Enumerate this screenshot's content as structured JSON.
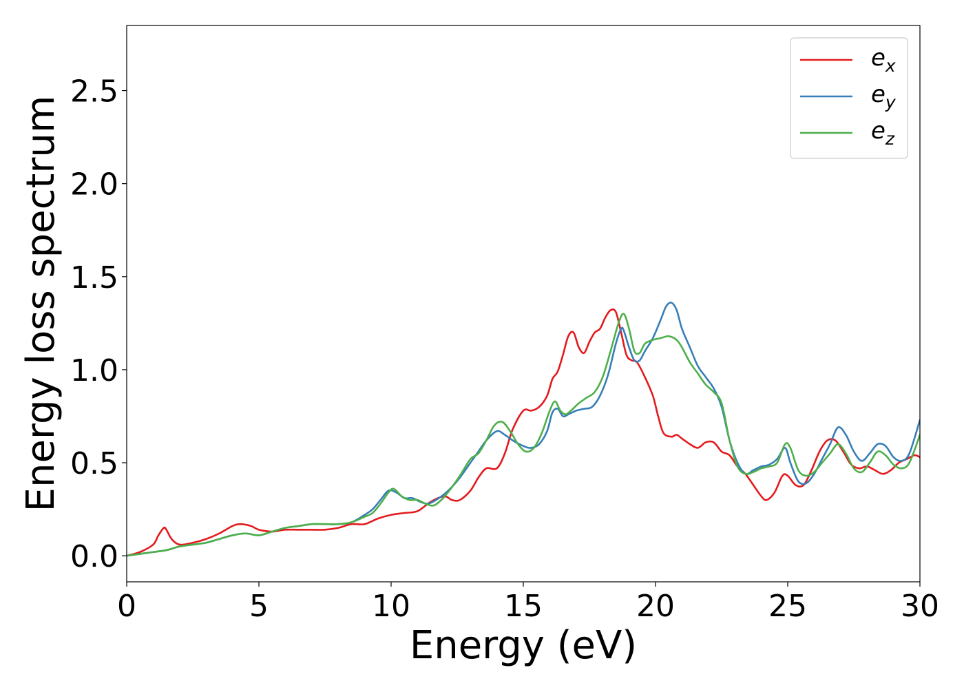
{
  "chart_data": {
    "type": "line",
    "title": "",
    "xlabel": "Energy (eV)",
    "ylabel": "Energy loss spectrum",
    "xlim": [
      0,
      30
    ],
    "ylim": [
      -0.14,
      2.85
    ],
    "xticks": [
      0,
      5,
      10,
      15,
      20,
      25,
      30
    ],
    "xtick_labels": [
      "0",
      "5",
      "10",
      "15",
      "20",
      "25",
      "30"
    ],
    "yticks": [
      0.0,
      0.5,
      1.0,
      1.5,
      2.0,
      2.5
    ],
    "ytick_labels": [
      "0.0",
      "0.5",
      "1.0",
      "1.5",
      "2.0",
      "2.5"
    ],
    "grid": false,
    "legend_position": "top-right",
    "series": [
      {
        "name": "e_x",
        "label_base": "e",
        "label_sub": "x",
        "color": "#e41a1c",
        "x": [
          0,
          0.5,
          1.0,
          1.2,
          1.4,
          1.5,
          1.7,
          2.0,
          2.5,
          3.0,
          3.5,
          4.0,
          4.3,
          4.7,
          5.0,
          5.5,
          6.0,
          6.5,
          7.0,
          7.5,
          8.0,
          8.5,
          9.0,
          9.5,
          10.0,
          10.5,
          11.0,
          11.5,
          12.0,
          12.3,
          12.6,
          13.0,
          13.3,
          13.6,
          14.0,
          14.3,
          14.6,
          15.0,
          15.3,
          15.6,
          15.9,
          16.1,
          16.3,
          16.5,
          16.7,
          16.9,
          17.1,
          17.3,
          17.5,
          17.7,
          17.9,
          18.1,
          18.3,
          18.5,
          18.7,
          18.9,
          19.1,
          19.3,
          19.6,
          19.9,
          20.1,
          20.3,
          20.6,
          20.8,
          21.0,
          21.3,
          21.6,
          21.9,
          22.2,
          22.5,
          22.8,
          23.1,
          23.4,
          23.7,
          24.0,
          24.2,
          24.5,
          24.8,
          25.0,
          25.3,
          25.6,
          25.9,
          26.2,
          26.5,
          26.8,
          27.1,
          27.4,
          27.7,
          28.0,
          28.3,
          28.6,
          28.9,
          29.2,
          29.5,
          29.8,
          30.0
        ],
        "y": [
          0.0,
          0.02,
          0.06,
          0.11,
          0.15,
          0.14,
          0.09,
          0.06,
          0.07,
          0.09,
          0.12,
          0.16,
          0.17,
          0.16,
          0.14,
          0.13,
          0.14,
          0.14,
          0.14,
          0.14,
          0.15,
          0.17,
          0.17,
          0.2,
          0.22,
          0.23,
          0.24,
          0.29,
          0.32,
          0.3,
          0.3,
          0.35,
          0.42,
          0.47,
          0.47,
          0.55,
          0.68,
          0.78,
          0.78,
          0.8,
          0.86,
          0.95,
          0.99,
          1.08,
          1.18,
          1.2,
          1.12,
          1.09,
          1.15,
          1.2,
          1.22,
          1.28,
          1.32,
          1.31,
          1.2,
          1.08,
          1.05,
          1.04,
          0.96,
          0.86,
          0.75,
          0.66,
          0.64,
          0.65,
          0.63,
          0.6,
          0.58,
          0.61,
          0.61,
          0.56,
          0.54,
          0.48,
          0.44,
          0.38,
          0.32,
          0.3,
          0.34,
          0.43,
          0.43,
          0.38,
          0.38,
          0.46,
          0.56,
          0.62,
          0.62,
          0.56,
          0.49,
          0.47,
          0.48,
          0.46,
          0.44,
          0.46,
          0.5,
          0.52,
          0.54,
          0.53
        ]
      },
      {
        "name": "e_y",
        "label_base": "e",
        "label_sub": "y",
        "color": "#377eb8",
        "x": [
          0,
          0.5,
          1.0,
          1.5,
          2.0,
          2.5,
          3.0,
          3.5,
          4.0,
          4.5,
          5.0,
          5.5,
          6.0,
          6.5,
          7.0,
          7.5,
          8.0,
          8.5,
          9.0,
          9.3,
          9.6,
          9.9,
          10.2,
          10.5,
          10.8,
          11.1,
          11.4,
          11.7,
          12.0,
          12.3,
          12.6,
          13.0,
          13.3,
          13.6,
          14.0,
          14.3,
          14.6,
          15.0,
          15.3,
          15.6,
          15.9,
          16.1,
          16.3,
          16.5,
          16.7,
          17.0,
          17.3,
          17.6,
          17.9,
          18.2,
          18.5,
          18.7,
          18.8,
          19.0,
          19.2,
          19.4,
          19.6,
          19.9,
          20.2,
          20.4,
          20.6,
          20.8,
          21.0,
          21.3,
          21.6,
          21.9,
          22.2,
          22.5,
          22.8,
          23.1,
          23.4,
          23.7,
          24.0,
          24.3,
          24.6,
          24.9,
          25.1,
          25.4,
          25.7,
          26.0,
          26.3,
          26.6,
          26.9,
          27.2,
          27.5,
          27.8,
          28.1,
          28.4,
          28.7,
          29.0,
          29.3,
          29.6,
          30.0
        ],
        "y": [
          0.0,
          0.01,
          0.02,
          0.03,
          0.05,
          0.06,
          0.07,
          0.09,
          0.11,
          0.12,
          0.11,
          0.13,
          0.15,
          0.16,
          0.17,
          0.17,
          0.17,
          0.18,
          0.22,
          0.25,
          0.3,
          0.35,
          0.34,
          0.31,
          0.31,
          0.29,
          0.28,
          0.3,
          0.33,
          0.37,
          0.42,
          0.5,
          0.56,
          0.62,
          0.67,
          0.65,
          0.62,
          0.59,
          0.58,
          0.6,
          0.67,
          0.77,
          0.79,
          0.75,
          0.76,
          0.78,
          0.79,
          0.8,
          0.86,
          0.97,
          1.14,
          1.22,
          1.21,
          1.12,
          1.05,
          1.05,
          1.1,
          1.17,
          1.27,
          1.34,
          1.36,
          1.32,
          1.22,
          1.12,
          1.02,
          0.96,
          0.9,
          0.8,
          0.62,
          0.5,
          0.44,
          0.46,
          0.48,
          0.49,
          0.52,
          0.58,
          0.5,
          0.4,
          0.39,
          0.44,
          0.52,
          0.6,
          0.69,
          0.65,
          0.56,
          0.51,
          0.55,
          0.6,
          0.59,
          0.53,
          0.51,
          0.55,
          0.73
        ]
      },
      {
        "name": "e_z",
        "label_base": "e",
        "label_sub": "z",
        "color": "#4daf4a",
        "x": [
          0,
          0.5,
          1.0,
          1.5,
          2.0,
          2.5,
          3.0,
          3.5,
          4.0,
          4.5,
          5.0,
          5.5,
          6.0,
          6.5,
          7.0,
          7.5,
          8.0,
          8.5,
          9.0,
          9.3,
          9.6,
          9.9,
          10.1,
          10.4,
          10.7,
          11.0,
          11.3,
          11.6,
          11.9,
          12.2,
          12.6,
          13.0,
          13.3,
          13.6,
          13.9,
          14.2,
          14.5,
          14.8,
          15.1,
          15.4,
          15.7,
          16.0,
          16.2,
          16.4,
          16.6,
          16.8,
          17.1,
          17.4,
          17.7,
          18.0,
          18.3,
          18.6,
          18.8,
          19.0,
          19.2,
          19.4,
          19.6,
          19.9,
          20.2,
          20.5,
          20.8,
          21.0,
          21.3,
          21.6,
          21.9,
          22.2,
          22.5,
          22.8,
          23.1,
          23.4,
          23.7,
          24.0,
          24.3,
          24.6,
          24.9,
          25.1,
          25.4,
          25.7,
          26.0,
          26.3,
          26.6,
          26.9,
          27.2,
          27.5,
          27.8,
          28.1,
          28.4,
          28.7,
          29.0,
          29.3,
          29.6,
          30.0
        ],
        "y": [
          0.0,
          0.01,
          0.02,
          0.03,
          0.05,
          0.06,
          0.07,
          0.09,
          0.11,
          0.12,
          0.11,
          0.13,
          0.15,
          0.16,
          0.17,
          0.17,
          0.17,
          0.18,
          0.21,
          0.23,
          0.28,
          0.34,
          0.36,
          0.32,
          0.3,
          0.3,
          0.28,
          0.27,
          0.3,
          0.35,
          0.43,
          0.52,
          0.55,
          0.62,
          0.7,
          0.72,
          0.67,
          0.6,
          0.56,
          0.58,
          0.66,
          0.78,
          0.83,
          0.78,
          0.76,
          0.78,
          0.82,
          0.85,
          0.88,
          0.96,
          1.1,
          1.25,
          1.3,
          1.22,
          1.1,
          1.09,
          1.14,
          1.16,
          1.17,
          1.18,
          1.16,
          1.12,
          1.04,
          0.98,
          0.92,
          0.88,
          0.82,
          0.62,
          0.48,
          0.44,
          0.45,
          0.47,
          0.48,
          0.5,
          0.6,
          0.58,
          0.46,
          0.43,
          0.45,
          0.5,
          0.55,
          0.6,
          0.55,
          0.47,
          0.45,
          0.5,
          0.56,
          0.54,
          0.49,
          0.47,
          0.5,
          0.65
        ]
      }
    ]
  }
}
